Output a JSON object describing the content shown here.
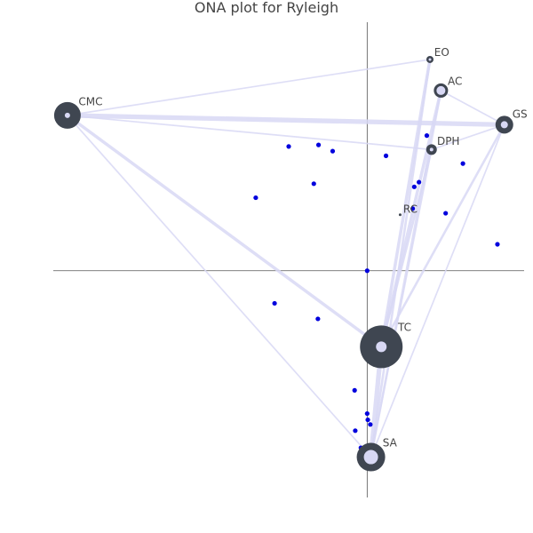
{
  "chart_data": {
    "type": "scatter",
    "title": "ONA plot for Ryleigh",
    "xlabel": "",
    "ylabel": "",
    "xlim": [
      -1.0,
      0.5
    ],
    "ylim": [
      -0.73,
      0.8
    ],
    "axes_color": "#555555",
    "edge_color": "#d8d8f4",
    "node_outer_color": "#3f4651",
    "node_inner_color": "#d8d8f4",
    "point_color": "#0000dd",
    "nodes": [
      {
        "label": "EO",
        "x": 0.2,
        "y": 0.68,
        "outer": 4,
        "inner": 1.5
      },
      {
        "label": "AC",
        "x": 0.235,
        "y": 0.58,
        "outer": 8,
        "inner": 5
      },
      {
        "label": "CMC",
        "x": -0.955,
        "y": 0.5,
        "outer": 15,
        "inner": 3
      },
      {
        "label": "GS",
        "x": 0.437,
        "y": 0.47,
        "outer": 10,
        "inner": 4
      },
      {
        "label": "DPH",
        "x": 0.205,
        "y": 0.39,
        "outer": 6,
        "inner": 2
      },
      {
        "label": "RC",
        "x": 0.105,
        "y": 0.18,
        "outer": 1.5,
        "inner": 0
      },
      {
        "label": "TC",
        "x": 0.045,
        "y": -0.245,
        "outer": 24,
        "inner": 6
      },
      {
        "label": "SA",
        "x": 0.012,
        "y": -0.6,
        "outer": 16,
        "inner": 8
      }
    ],
    "edges": [
      {
        "from": "CMC",
        "to": "GS",
        "weight": 5
      },
      {
        "from": "CMC",
        "to": "TC",
        "weight": 3
      },
      {
        "from": "CMC",
        "to": "SA",
        "weight": 1
      },
      {
        "from": "CMC",
        "to": "EO",
        "weight": 1
      },
      {
        "from": "CMC",
        "to": "DPH",
        "weight": 1
      },
      {
        "from": "TC",
        "to": "SA",
        "weight": 5
      },
      {
        "from": "TC",
        "to": "EO",
        "weight": 3
      },
      {
        "from": "TC",
        "to": "AC",
        "weight": 3
      },
      {
        "from": "TC",
        "to": "GS",
        "weight": 2
      },
      {
        "from": "TC",
        "to": "DPH",
        "weight": 2
      },
      {
        "from": "SA",
        "to": "EO",
        "weight": 2
      },
      {
        "from": "SA",
        "to": "AC",
        "weight": 2
      },
      {
        "from": "SA",
        "to": "GS",
        "weight": 1
      },
      {
        "from": "SA",
        "to": "DPH",
        "weight": 1
      },
      {
        "from": "DPH",
        "to": "GS",
        "weight": 1
      },
      {
        "from": "AC",
        "to": "GS",
        "weight": 1
      }
    ],
    "points": [
      {
        "x": -0.25,
        "y": 0.4
      },
      {
        "x": -0.155,
        "y": 0.405
      },
      {
        "x": -0.11,
        "y": 0.385
      },
      {
        "x": 0.06,
        "y": 0.37
      },
      {
        "x": 0.19,
        "y": 0.435
      },
      {
        "x": 0.305,
        "y": 0.345
      },
      {
        "x": -0.17,
        "y": 0.28
      },
      {
        "x": -0.355,
        "y": 0.235
      },
      {
        "x": 0.15,
        "y": 0.27
      },
      {
        "x": 0.165,
        "y": 0.285
      },
      {
        "x": 0.145,
        "y": 0.2
      },
      {
        "x": 0.25,
        "y": 0.185
      },
      {
        "x": 0.415,
        "y": 0.085
      },
      {
        "x": 0.0,
        "y": 0.0
      },
      {
        "x": -0.295,
        "y": -0.105
      },
      {
        "x": -0.157,
        "y": -0.155
      },
      {
        "x": -0.04,
        "y": -0.385
      },
      {
        "x": 0.0,
        "y": -0.46
      },
      {
        "x": 0.002,
        "y": -0.48
      },
      {
        "x": 0.01,
        "y": -0.495
      },
      {
        "x": -0.038,
        "y": -0.515
      },
      {
        "x": -0.02,
        "y": -0.57
      }
    ]
  }
}
